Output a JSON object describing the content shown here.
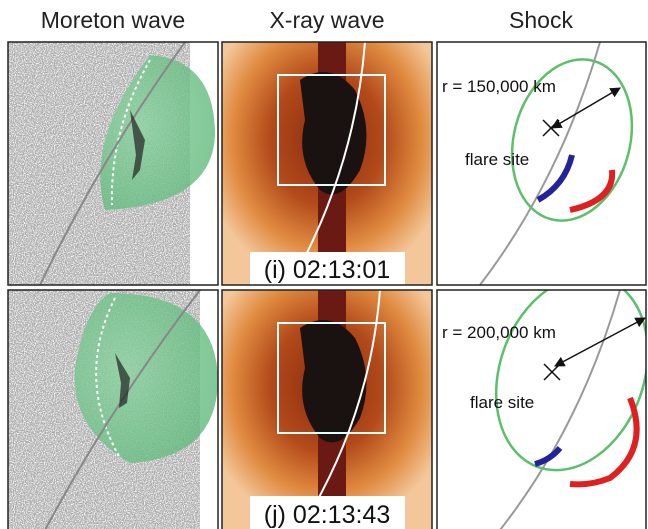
{
  "columns": [
    "Moreton wave",
    "X-ray wave",
    "Shock"
  ],
  "rows": [
    {
      "time_label": "(i) 02:13:01",
      "radius_label": "r = 150,000 km",
      "site_label": "flare site"
    },
    {
      "time_label": "(j) 02:13:43",
      "radius_label": "r = 200,000 km",
      "site_label": "flare site"
    }
  ]
}
